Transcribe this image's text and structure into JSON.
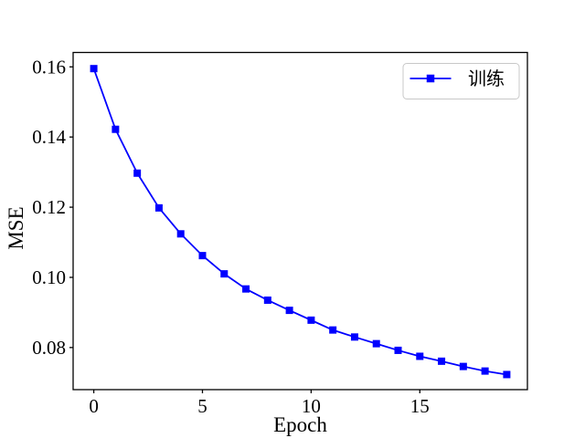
{
  "figure": {
    "background": "#ffffff",
    "title": ""
  },
  "chart_data": {
    "type": "line",
    "title": "",
    "xlabel": "Epoch",
    "ylabel": "MSE",
    "x": [
      0,
      1,
      2,
      3,
      4,
      5,
      6,
      7,
      8,
      9,
      10,
      11,
      12,
      13,
      14,
      15,
      16,
      17,
      18,
      19
    ],
    "series": [
      {
        "name": "训练",
        "color": "#0000ff",
        "marker": "square",
        "marker_size": 8,
        "line_width": 1.8,
        "values": [
          0.1595,
          0.1422,
          0.1297,
          0.1198,
          0.1124,
          0.1062,
          0.101,
          0.0967,
          0.0935,
          0.0906,
          0.0878,
          0.085,
          0.083,
          0.0811,
          0.0792,
          0.0775,
          0.0761,
          0.0746,
          0.0733,
          0.0723
        ]
      }
    ],
    "xlim": [
      -0.95,
      19.95
    ],
    "ylim": [
      0.068,
      0.1641
    ],
    "xticks": {
      "values": [
        0,
        5,
        10,
        15
      ],
      "labels": [
        "0",
        "5",
        "10",
        "15"
      ]
    },
    "yticks": {
      "values": [
        0.08,
        0.1,
        0.12,
        0.14,
        0.16
      ],
      "labels": [
        "0.08",
        "0.10",
        "0.12",
        "0.14",
        "0.16"
      ]
    },
    "grid": false,
    "legend": {
      "position": "upper right",
      "entries": [
        "训练"
      ],
      "border_color": "#c8c8c8",
      "fill": "#ffffff"
    }
  },
  "style": {
    "axis_color": "#000000",
    "text_color": "#000000",
    "line_color": "#0000ff"
  }
}
